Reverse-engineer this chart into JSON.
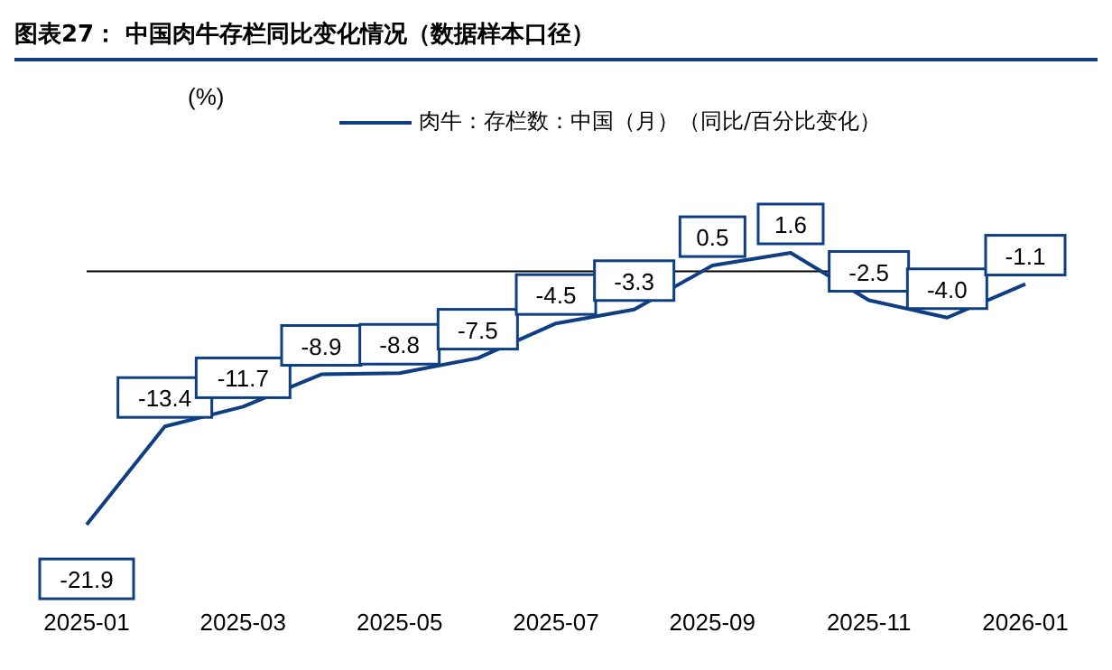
{
  "chart_data": {
    "type": "line",
    "title": "图表27：  中国肉牛存栏同比变化情况（数据样本口径）",
    "annotations": [
      "(%)"
    ],
    "categories": [
      "2025-01",
      null,
      "2025-03",
      null,
      "2025-05",
      null,
      "2025-07",
      null,
      "2025-09",
      null,
      "2025-11",
      null,
      "2026-01"
    ],
    "series": [
      {
        "name": "肉牛：存栏数：中国（月）（同比/百分比变化）",
        "color": "#0e3f82",
        "values": [
          -21.9,
          -13.4,
          -11.7,
          -8.9,
          -8.8,
          -7.5,
          -4.5,
          -3.3,
          0.5,
          1.6,
          -2.5,
          -4.0,
          -1.1
        ],
        "value_labels": [
          "-21.9",
          "-13.4",
          "-11.7",
          "-8.9",
          "-8.8",
          "-7.5",
          "-4.5",
          "-3.3",
          "0.5",
          "1.6",
          "-2.5",
          "-4.0",
          "-1.1"
        ]
      }
    ],
    "tick_labels": "x",
    "legend": "top",
    "marker": "none",
    "line_style": "solid",
    "ref_lines": [
      {
        "axis": "y",
        "value": 0
      }
    ]
  }
}
